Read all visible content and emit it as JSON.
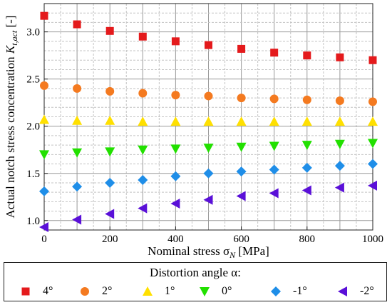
{
  "chart_data": {
    "type": "scatter",
    "xlabel": "Nominal stress σN [MPa]",
    "ylabel": "Actual notch stress concentration Kt,act [-]",
    "xlim": [
      0,
      1000
    ],
    "ylim": [
      0.9,
      3.3
    ],
    "x_ticks": [
      "0",
      "200",
      "400",
      "600",
      "800",
      "1000"
    ],
    "y_ticks": [
      "1.0",
      "1.5",
      "2.0",
      "2.5",
      "3.0"
    ],
    "grid": true,
    "legend_position": "bottom",
    "legend_title": "Distortion angle α:",
    "x": [
      0,
      100,
      200,
      300,
      400,
      500,
      600,
      700,
      800,
      900,
      1000
    ],
    "series": [
      {
        "name": "4°",
        "marker": "square",
        "color": "#e41a1c",
        "values": [
          3.17,
          3.08,
          3.01,
          2.95,
          2.9,
          2.86,
          2.82,
          2.78,
          2.75,
          2.73,
          2.7
        ]
      },
      {
        "name": "2°",
        "marker": "circle",
        "color": "#f47a20",
        "values": [
          2.43,
          2.4,
          2.37,
          2.35,
          2.33,
          2.32,
          2.3,
          2.29,
          2.28,
          2.27,
          2.26
        ]
      },
      {
        "name": "1°",
        "marker": "triangle-up",
        "color": "#ffe000",
        "values": [
          2.07,
          2.06,
          2.06,
          2.05,
          2.05,
          2.05,
          2.05,
          2.05,
          2.05,
          2.05,
          2.05
        ]
      },
      {
        "name": "0°",
        "marker": "triangle-down",
        "color": "#22e000",
        "values": [
          1.7,
          1.72,
          1.73,
          1.75,
          1.76,
          1.77,
          1.78,
          1.79,
          1.8,
          1.81,
          1.82
        ]
      },
      {
        "name": "-1°",
        "marker": "diamond",
        "color": "#1f8ee8",
        "values": [
          1.31,
          1.36,
          1.4,
          1.43,
          1.47,
          1.5,
          1.52,
          1.54,
          1.56,
          1.58,
          1.6
        ]
      },
      {
        "name": "-2°",
        "marker": "triangle-left",
        "color": "#5a10d8",
        "values": [
          0.93,
          1.01,
          1.07,
          1.13,
          1.18,
          1.22,
          1.26,
          1.29,
          1.32,
          1.35,
          1.37
        ]
      }
    ]
  }
}
